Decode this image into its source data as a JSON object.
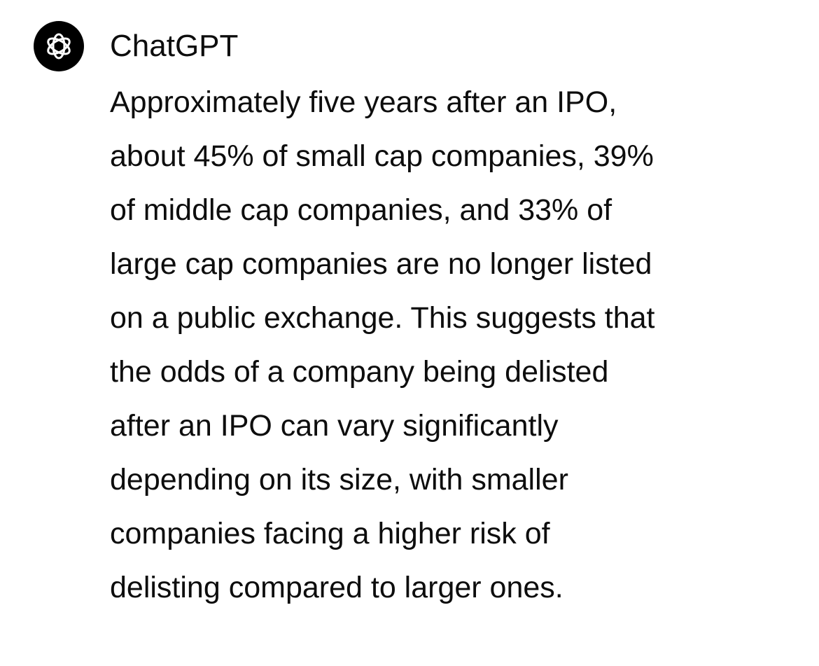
{
  "message": {
    "sender": "ChatGPT",
    "lines": [
      "Approximately five years after an IPO,",
      "about 45% of small cap companies, 39%",
      "of middle cap companies, and 33% of",
      "large cap companies are no longer listed",
      "on a public exchange. This suggests that",
      "the odds of a company being delisted",
      "after an IPO can vary significantly",
      "depending on its size, with smaller",
      "companies facing a higher risk of",
      "delisting compared to larger ones."
    ]
  }
}
